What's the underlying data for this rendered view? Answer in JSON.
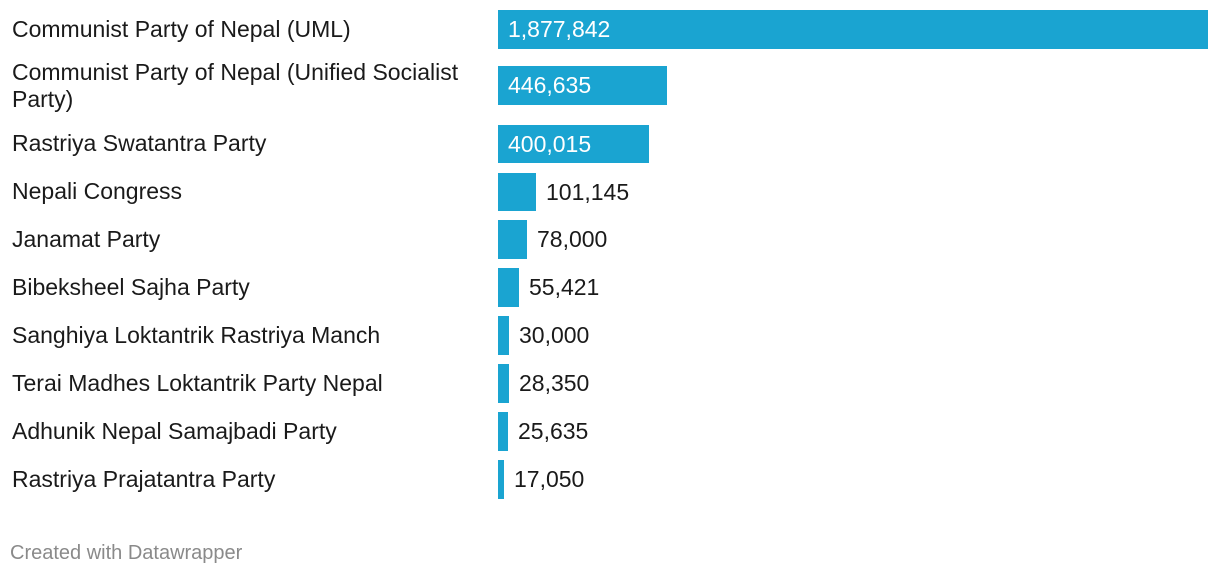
{
  "chart_data": {
    "type": "bar",
    "orientation": "horizontal",
    "categories": [
      "Communist Party of Nepal (UML)",
      "Communist Party of Nepal (Unified Socialist Party)",
      "Rastriya Swatantra Party",
      "Nepali Congress",
      "Janamat Party",
      "Bibeksheel Sajha Party",
      "Sanghiya Loktantrik Rastriya Manch",
      "Terai Madhes Loktantrik Party Nepal",
      "Adhunik Nepal Samajbadi Party",
      "Rastriya Prajatantra Party"
    ],
    "values": [
      1877842,
      446635,
      400015,
      101145,
      78000,
      55421,
      30000,
      28350,
      25635,
      17050
    ],
    "value_labels": [
      "1,877,842",
      "446,635",
      "400,015",
      "101,145",
      "78,000",
      "55,421",
      "30,000",
      "28,350",
      "25,635",
      "17,050"
    ],
    "bar_color": "#1aa4d1",
    "grid": false,
    "legend": "none"
  },
  "footer": {
    "credit": "Created with Datawrapper"
  }
}
